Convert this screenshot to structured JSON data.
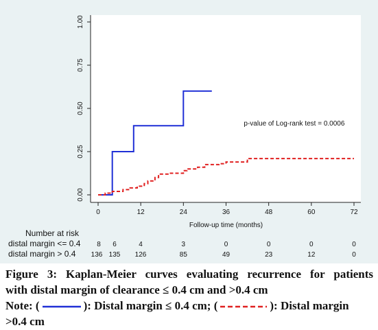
{
  "chart_data": {
    "type": "line",
    "step": true,
    "xlabel": "Follow-up time (months)",
    "ylabel": "",
    "xlim": [
      0,
      72
    ],
    "ylim": [
      0,
      1
    ],
    "x_ticks": [
      0,
      12,
      24,
      36,
      48,
      60,
      72
    ],
    "y_ticks": [
      0,
      0.25,
      0.5,
      0.75,
      1.0
    ],
    "y_tick_labels": [
      "0.00",
      "0.25",
      "0.50",
      "0.75",
      "1.00"
    ],
    "grid": false,
    "series": [
      {
        "name": "distal margin <= 0.4",
        "color": "#1f2fd6",
        "style": "solid",
        "x": [
          0,
          4,
          4,
          10,
          10,
          24,
          24,
          32
        ],
        "y": [
          0,
          0,
          0.25,
          0.25,
          0.4,
          0.4,
          0.6,
          0.6
        ]
      },
      {
        "name": "distal margin > 0.4",
        "color": "#e02020",
        "style": "dashed",
        "x": [
          0,
          2,
          2,
          4,
          4,
          7,
          7,
          9,
          9,
          11,
          11,
          13,
          13,
          14,
          14,
          16,
          16,
          17,
          17,
          20,
          20,
          24,
          24,
          25,
          25,
          28,
          28,
          30,
          30,
          34,
          34,
          36,
          36,
          42,
          42,
          72
        ],
        "y": [
          0,
          0,
          0.01,
          0.01,
          0.02,
          0.02,
          0.03,
          0.03,
          0.04,
          0.04,
          0.05,
          0.05,
          0.065,
          0.065,
          0.08,
          0.08,
          0.1,
          0.1,
          0.12,
          0.12,
          0.125,
          0.125,
          0.14,
          0.14,
          0.15,
          0.15,
          0.16,
          0.16,
          0.175,
          0.175,
          0.18,
          0.18,
          0.19,
          0.19,
          0.21,
          0.21
        ]
      }
    ],
    "annotation": "p-value of Log-rank test = 0.0006",
    "annotation_pos": [
      41,
      0.4
    ],
    "risk_table": {
      "title": "Number at risk",
      "times": [
        0,
        12,
        24,
        36,
        48,
        60,
        72
      ],
      "rows": [
        {
          "label": "distal margin <= 0.4",
          "first": "8",
          "second": "6",
          "values": [
            "4",
            "3",
            "0",
            "0",
            "0",
            "0"
          ]
        },
        {
          "label": "distal margin > 0.4",
          "first": "136",
          "second": "135",
          "values": [
            "126",
            "85",
            "49",
            "23",
            "12",
            "0"
          ]
        }
      ]
    }
  },
  "caption": {
    "line1": "Figure 3: Kaplan-Meier curves evaluating recurrence for patients",
    "line2": "with distal margin of clearance ≤ 0.4 cm and >0.4 cm",
    "note_prefix": "Note: (",
    "note_mid1": "): Distal margin ≤ 0.4 cm; (",
    "note_mid2": "): Distal margin",
    "note_end": ">0.4 cm"
  }
}
